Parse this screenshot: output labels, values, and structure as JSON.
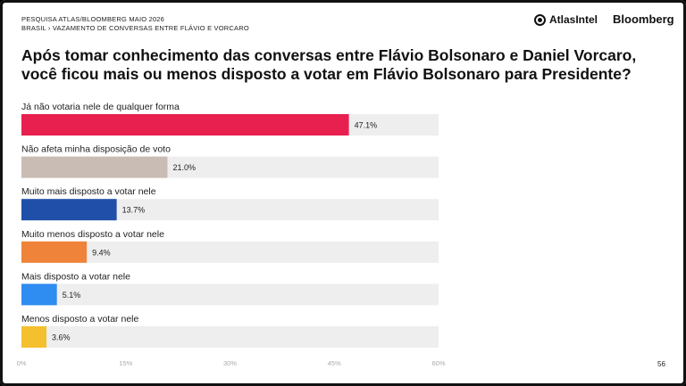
{
  "header": {
    "line1": "PESQUISA ATLAS/BLOOMBERG MAIO 2026",
    "line2": "BRASIL  ›  VAZAMENTO DE CONVERSAS ENTRE FLÁVIO E VORCARO"
  },
  "logos": {
    "atlas": "AtlasIntel",
    "bloomberg": "Bloomberg"
  },
  "title_lines": [
    "Após tomar conhecimento das conversas entre Flávio Bolsonaro e Daniel Vorcaro,",
    "você ficou mais ou menos disposto a votar em Flávio Bolsonaro para Presidente?"
  ],
  "page_number": "56",
  "chart_data": {
    "type": "bar",
    "orientation": "horizontal",
    "categories": [
      "Já não votaria nele de qualquer forma",
      "Não afeta minha disposição de voto",
      "Muito mais disposto a votar nele",
      "Muito menos disposto a votar nele",
      "Mais disposto a votar nele",
      "Menos disposto a votar nele"
    ],
    "values": [
      47.1,
      21.0,
      13.7,
      9.4,
      5.1,
      3.6
    ],
    "value_labels": [
      "47.1%",
      "21.0%",
      "13.7%",
      "9.4%",
      "5.1%",
      "3.6%"
    ],
    "colors": [
      "#e8204f",
      "#c9bcb4",
      "#1f4fa8",
      "#ef8339",
      "#2f8cf0",
      "#f5c02e"
    ],
    "track_color": "#eeeeee",
    "xlim": [
      0,
      60
    ],
    "x_ticks": [
      "0%",
      "15%",
      "30%",
      "45%",
      "60%"
    ],
    "grid": false
  }
}
